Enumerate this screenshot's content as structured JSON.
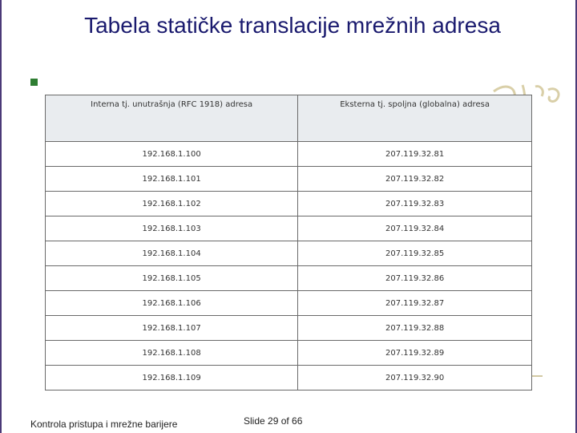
{
  "slide": {
    "title": "Tabela statičke translacije mrežnih adresa",
    "footer_left": "Kontrola pristupa i mrežne barijere",
    "footer_right": "Slide 29 of 66"
  },
  "table": {
    "headers": [
      "Interna tj. unutrašnja (RFC 1918) adresa",
      "Eksterna tj. spoljna (globalna) adresa"
    ],
    "rows": [
      [
        "192.168.1.100",
        "207.119.32.81"
      ],
      [
        "192.168.1.101",
        "207.119.32.82"
      ],
      [
        "192.168.1.102",
        "207.119.32.83"
      ],
      [
        "192.168.1.103",
        "207.119.32.84"
      ],
      [
        "192.168.1.104",
        "207.119.32.85"
      ],
      [
        "192.168.1.105",
        "207.119.32.86"
      ],
      [
        "192.168.1.106",
        "207.119.32.87"
      ],
      [
        "192.168.1.107",
        "207.119.32.88"
      ],
      [
        "192.168.1.108",
        "207.119.32.89"
      ],
      [
        "192.168.1.109",
        "207.119.32.90"
      ]
    ]
  },
  "colors": {
    "title": "#1a1a6e",
    "bullet": "#2e7d32",
    "frame": "#4b3a78"
  }
}
